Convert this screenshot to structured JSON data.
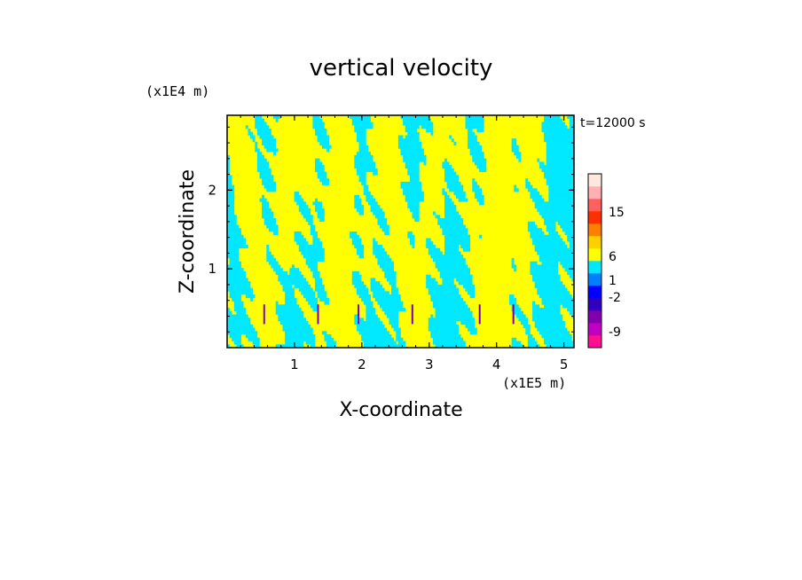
{
  "chart_data": {
    "type": "heatmap",
    "title": "vertical velocity",
    "xlabel": "X-coordinate",
    "ylabel": "Z-coordinate",
    "x_unit": "(x1E5 m)",
    "y_unit": "(x1E4 m)",
    "time_label": "t=12000 s",
    "xlim": [
      0,
      5.15
    ],
    "ylim": [
      0,
      2.95
    ],
    "x_ticks": [
      "1",
      "2",
      "3",
      "4",
      "5"
    ],
    "x_tick_values": [
      1,
      2,
      3,
      4,
      5
    ],
    "y_ticks": [
      "1",
      "2"
    ],
    "y_tick_values": [
      1,
      2
    ],
    "colorbar": {
      "tick_labels": [
        "15",
        "6",
        "1",
        "-2",
        "-9"
      ],
      "colors": [
        "#ff1090",
        "#c000c0",
        "#8000b0",
        "#3000c0",
        "#0000ff",
        "#0080ff",
        "#00e8ff",
        "#ffff00",
        "#ffd000",
        "#ff8000",
        "#ff3000",
        "#ff6060",
        "#ffb0b0",
        "#ffe8e0"
      ]
    },
    "field_colors": {
      "positive": "#ffff00",
      "negative": "#00e8ff",
      "strong_negative": "#8000b0",
      "strong_positive": "#ff8000"
    }
  }
}
